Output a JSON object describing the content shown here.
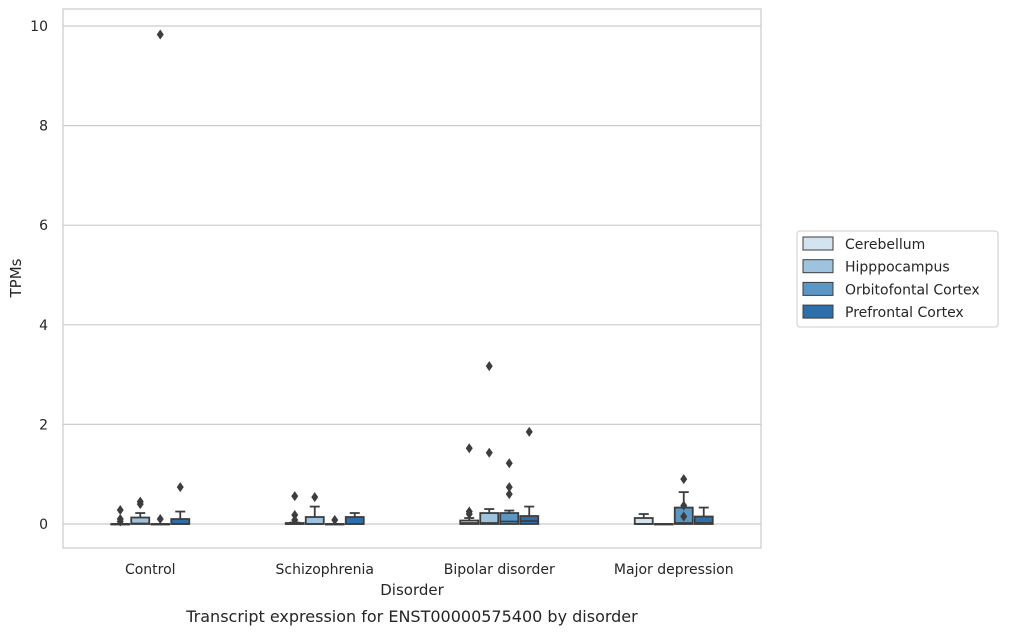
{
  "chart_data": {
    "type": "box",
    "caption": "Transcript expression for ENST00000575400 by disorder",
    "xlabel": "Disorder",
    "ylabel": "TPMs",
    "ylim": [
      -0.48,
      10.35
    ],
    "yticks": [
      0,
      2,
      4,
      6,
      8,
      10
    ],
    "grid": true,
    "legend_position": "right",
    "categories": [
      "Control",
      "Schizophrenia",
      "Bipolar disorder",
      "Major depression"
    ],
    "series": [
      {
        "name": "Cerebellum",
        "color": "#d4e3f0",
        "boxes": [
          {
            "q1": 0,
            "median": 0,
            "q3": 0,
            "whisker_low": 0,
            "whisker_high": 0,
            "outliers": [
              0.28,
              0.1,
              0.05
            ]
          },
          {
            "q1": 0,
            "median": 0,
            "q3": 0.02,
            "whisker_low": 0,
            "whisker_high": 0.03,
            "outliers": [
              0.56,
              0.18,
              0.08
            ]
          },
          {
            "q1": 0,
            "median": 0.02,
            "q3": 0.07,
            "whisker_low": 0,
            "whisker_high": 0.12,
            "outliers": [
              1.52,
              0.25,
              0.2
            ]
          },
          {
            "q1": 0,
            "median": 0,
            "q3": 0.12,
            "whisker_low": 0,
            "whisker_high": 0.2,
            "outliers": []
          }
        ]
      },
      {
        "name": "Hipppocampus",
        "color": "#9dc3de",
        "boxes": [
          {
            "q1": 0,
            "median": 0.01,
            "q3": 0.13,
            "whisker_low": 0,
            "whisker_high": 0.22,
            "outliers": [
              0.45,
              0.4
            ]
          },
          {
            "q1": 0,
            "median": 0,
            "q3": 0.14,
            "whisker_low": 0,
            "whisker_high": 0.35,
            "outliers": [
              0.54
            ]
          },
          {
            "q1": 0,
            "median": 0.02,
            "q3": 0.22,
            "whisker_low": 0,
            "whisker_high": 0.3,
            "outliers": [
              3.17,
              1.43
            ]
          },
          {
            "q1": 0,
            "median": 0,
            "q3": 0,
            "whisker_low": 0,
            "whisker_high": 0,
            "outliers": []
          }
        ]
      },
      {
        "name": "Orbitofontal Cortex",
        "color": "#5b97c4",
        "boxes": [
          {
            "q1": 0,
            "median": 0,
            "q3": 0,
            "whisker_low": 0,
            "whisker_high": 0,
            "outliers": [
              9.83,
              0.1
            ]
          },
          {
            "q1": 0,
            "median": 0,
            "q3": 0,
            "whisker_low": 0,
            "whisker_high": 0,
            "outliers": [
              0.08
            ]
          },
          {
            "q1": 0,
            "median": 0.05,
            "q3": 0.22,
            "whisker_low": 0,
            "whisker_high": 0.27,
            "outliers": [
              1.22,
              0.74,
              0.6
            ]
          },
          {
            "q1": 0,
            "median": 0.02,
            "q3": 0.33,
            "whisker_low": 0,
            "whisker_high": 0.64,
            "outliers": [
              0.9,
              0.37,
              0.15
            ]
          }
        ]
      },
      {
        "name": "Prefrontal Cortex",
        "color": "#2d6eab",
        "boxes": [
          {
            "q1": 0,
            "median": 0,
            "q3": 0.1,
            "whisker_low": 0,
            "whisker_high": 0.25,
            "outliers": [
              0.74
            ]
          },
          {
            "q1": 0,
            "median": 0,
            "q3": 0.14,
            "whisker_low": 0,
            "whisker_high": 0.22,
            "outliers": []
          },
          {
            "q1": 0,
            "median": 0.06,
            "q3": 0.16,
            "whisker_low": 0,
            "whisker_high": 0.35,
            "outliers": [
              1.85
            ]
          },
          {
            "q1": 0,
            "median": 0.02,
            "q3": 0.15,
            "whisker_low": 0,
            "whisker_high": 0.33,
            "outliers": []
          }
        ]
      }
    ]
  }
}
